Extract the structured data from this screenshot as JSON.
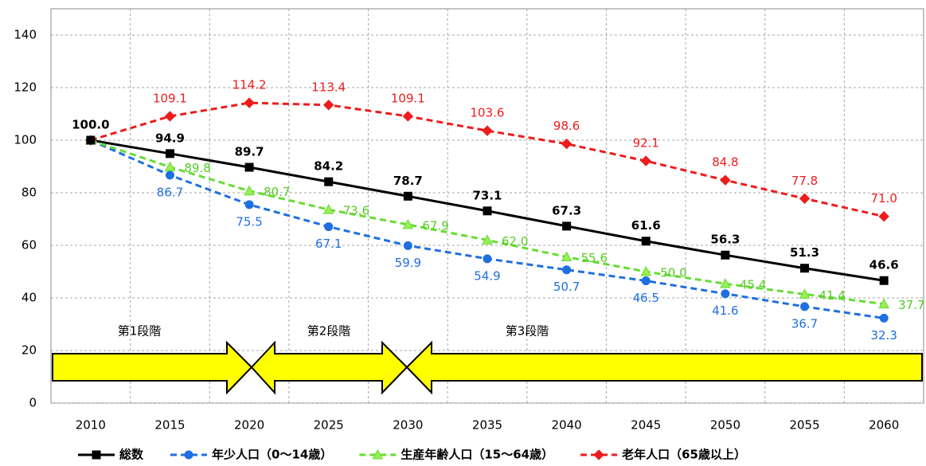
{
  "chart_data": {
    "type": "line",
    "categories": [
      "2010",
      "2015",
      "2020",
      "2025",
      "2030",
      "2035",
      "2040",
      "2045",
      "2050",
      "2055",
      "2060"
    ],
    "ylim": [
      0,
      150
    ],
    "yticks": [
      0,
      20,
      40,
      60,
      80,
      100,
      120,
      140
    ],
    "grid": true,
    "series": [
      {
        "name": "総数",
        "color": "#000000",
        "marker": "square",
        "dashed": false,
        "values": [
          100.0,
          94.9,
          89.7,
          84.2,
          78.7,
          73.1,
          67.3,
          61.6,
          56.3,
          51.3,
          46.6
        ],
        "value_labels": [
          "100.0",
          "94.9",
          "89.7",
          "84.2",
          "78.7",
          "73.1",
          "67.3",
          "61.6",
          "56.3",
          "51.3",
          "46.6"
        ]
      },
      {
        "name": "年少人口（0～14歳）",
        "color": "#1f6fe0",
        "marker": "circle",
        "dashed": true,
        "values": [
          100.0,
          86.7,
          75.5,
          67.1,
          59.9,
          54.9,
          50.7,
          46.5,
          41.6,
          36.7,
          32.3
        ],
        "value_labels": [
          null,
          "86.7",
          "75.5",
          "67.1",
          "59.9",
          "54.9",
          "50.7",
          "46.5",
          "41.6",
          "36.7",
          "32.3"
        ]
      },
      {
        "name": "生産年齢人口（15～64歳）",
        "color": "#66dd33",
        "marker": "triangle",
        "dashed": true,
        "values": [
          100.0,
          89.8,
          80.7,
          73.6,
          67.9,
          62.0,
          55.6,
          50.0,
          45.4,
          41.4,
          37.7
        ],
        "value_labels": [
          null,
          "89.8",
          "80.7",
          "73.6",
          "67.9",
          "62.0",
          "55.6",
          "50.0",
          "45.4",
          "41.4",
          "37.7"
        ]
      },
      {
        "name": "老年人口（65歳以上）",
        "color": "#ee1c1c",
        "marker": "diamond",
        "dashed": true,
        "values": [
          100.0,
          109.1,
          114.2,
          113.4,
          109.1,
          103.6,
          98.6,
          92.1,
          84.8,
          77.8,
          71.0
        ],
        "value_labels": [
          null,
          "109.1",
          "114.2",
          "113.4",
          "109.1",
          "103.6",
          "98.6",
          "92.1",
          "84.8",
          "77.8",
          "71.0"
        ]
      }
    ],
    "annotations": [
      "第1段階",
      "第2段階",
      "第3段階"
    ]
  }
}
